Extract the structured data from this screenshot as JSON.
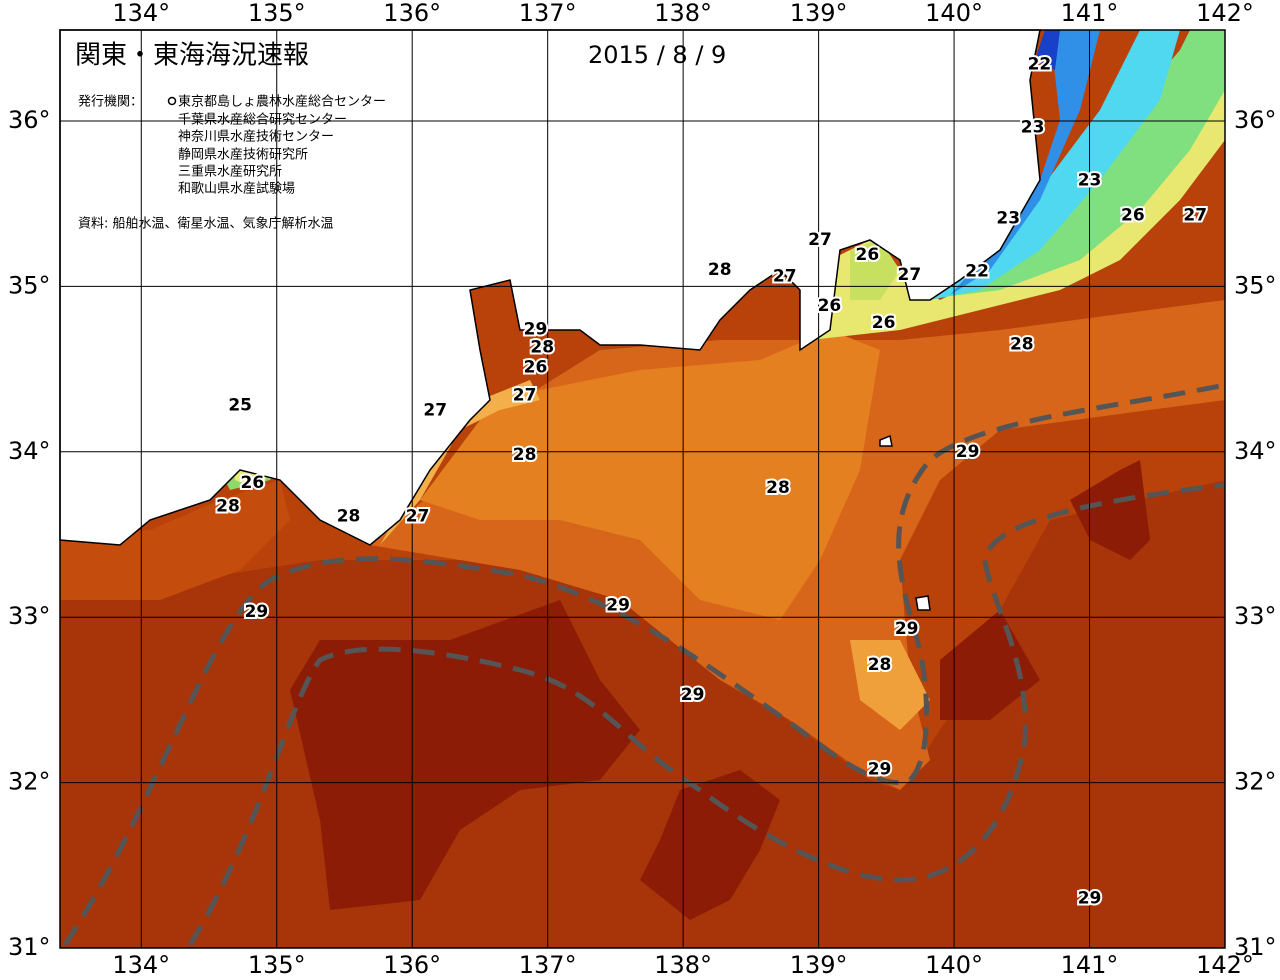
{
  "map": {
    "title": "関東・東海海況速報",
    "date": "2015 / 8 / 9",
    "publisher_label": "発行機関：",
    "publishers": [
      "東京都島しょ農林水産総合センター",
      "千葉県水産総合研究センター",
      "神奈川県水産技術センター",
      "静岡県水産技術研究所",
      "三重県水産研究所",
      "和歌山県水産試験場"
    ],
    "source": "資料: 船舶水温、衛星水温、気象庁解析水温",
    "lon_range": [
      133.4,
      142
    ],
    "lat_range": [
      31,
      36.55
    ],
    "lon_ticks": [
      {
        "value": 134,
        "label": "134°"
      },
      {
        "value": 135,
        "label": "135°"
      },
      {
        "value": 136,
        "label": "136°"
      },
      {
        "value": 137,
        "label": "137°"
      },
      {
        "value": 138,
        "label": "138°"
      },
      {
        "value": 139,
        "label": "139°"
      },
      {
        "value": 140,
        "label": "140°"
      },
      {
        "value": 141,
        "label": "141°"
      },
      {
        "value": 142,
        "label": "142°"
      }
    ],
    "lat_ticks": [
      {
        "value": 31,
        "label": "31°"
      },
      {
        "value": 32,
        "label": "32°"
      },
      {
        "value": 33,
        "label": "33°"
      },
      {
        "value": 34,
        "label": "34°"
      },
      {
        "value": 35,
        "label": "35°"
      },
      {
        "value": 36,
        "label": "36°"
      }
    ],
    "contour_labels": [
      {
        "value": 22,
        "lon": 140.63,
        "lat": 36.34
      },
      {
        "value": 23,
        "lon": 140.58,
        "lat": 35.96
      },
      {
        "value": 23,
        "lon": 141.0,
        "lat": 35.64
      },
      {
        "value": 23,
        "lon": 140.4,
        "lat": 35.41
      },
      {
        "value": 26,
        "lon": 141.32,
        "lat": 35.43
      },
      {
        "value": 27,
        "lon": 141.78,
        "lat": 35.43
      },
      {
        "value": 22,
        "lon": 140.17,
        "lat": 35.09
      },
      {
        "value": 27,
        "lon": 139.01,
        "lat": 35.28
      },
      {
        "value": 26,
        "lon": 139.36,
        "lat": 35.19
      },
      {
        "value": 27,
        "lon": 139.67,
        "lat": 35.07
      },
      {
        "value": 28,
        "lon": 138.27,
        "lat": 35.1
      },
      {
        "value": 27,
        "lon": 138.75,
        "lat": 35.06
      },
      {
        "value": 26,
        "lon": 139.08,
        "lat": 34.88
      },
      {
        "value": 26,
        "lon": 139.48,
        "lat": 34.78
      },
      {
        "value": 28,
        "lon": 140.5,
        "lat": 34.65
      },
      {
        "value": 29,
        "lon": 136.91,
        "lat": 34.74
      },
      {
        "value": 28,
        "lon": 136.96,
        "lat": 34.63
      },
      {
        "value": 26,
        "lon": 136.91,
        "lat": 34.51
      },
      {
        "value": 27,
        "lon": 136.83,
        "lat": 34.34
      },
      {
        "value": 27,
        "lon": 136.17,
        "lat": 34.25
      },
      {
        "value": 25,
        "lon": 134.73,
        "lat": 34.28
      },
      {
        "value": 26,
        "lon": 134.82,
        "lat": 33.81
      },
      {
        "value": 28,
        "lon": 134.64,
        "lat": 33.67
      },
      {
        "value": 28,
        "lon": 135.53,
        "lat": 33.61
      },
      {
        "value": 27,
        "lon": 136.04,
        "lat": 33.61
      },
      {
        "value": 28,
        "lon": 136.83,
        "lat": 33.98
      },
      {
        "value": 28,
        "lon": 138.7,
        "lat": 33.78
      },
      {
        "value": 29,
        "lon": 140.1,
        "lat": 34.0
      },
      {
        "value": 29,
        "lon": 137.52,
        "lat": 33.07
      },
      {
        "value": 29,
        "lon": 134.85,
        "lat": 33.03
      },
      {
        "value": 29,
        "lon": 139.65,
        "lat": 32.93
      },
      {
        "value": 28,
        "lon": 139.45,
        "lat": 32.71
      },
      {
        "value": 29,
        "lon": 138.07,
        "lat": 32.53
      },
      {
        "value": 29,
        "lon": 139.45,
        "lat": 32.08
      },
      {
        "value": 29,
        "lon": 141.0,
        "lat": 31.3
      }
    ]
  }
}
